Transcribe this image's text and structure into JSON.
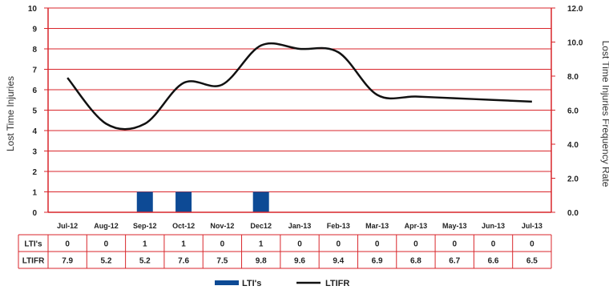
{
  "chart_data": {
    "type": "bar+line",
    "categories": [
      "Jul-12",
      "Aug-12",
      "Sep-12",
      "Oct-12",
      "Nov-12",
      "Dec12",
      "Jan-13",
      "Feb-13",
      "Mar-13",
      "Apr-13",
      "May-13",
      "Jun-13",
      "Jul-13"
    ],
    "series": [
      {
        "name": "LTI's",
        "type": "bar",
        "axis": "left",
        "values": [
          0,
          0,
          1,
          1,
          0,
          1,
          0,
          0,
          0,
          0,
          0,
          0,
          0
        ]
      },
      {
        "name": "LTIFR",
        "type": "line",
        "axis": "right",
        "values": [
          7.9,
          5.2,
          5.2,
          7.6,
          7.5,
          9.8,
          9.6,
          9.4,
          6.9,
          6.8,
          6.7,
          6.6,
          6.5
        ]
      }
    ],
    "ylabel": "Lost Time Injuries",
    "y2label": "Lost Time Injuries Frequency Rate",
    "ylim": [
      0,
      10
    ],
    "y2lim": [
      0,
      12
    ],
    "yticks": [
      "0",
      "1",
      "2",
      "3",
      "4",
      "5",
      "6",
      "7",
      "8",
      "9",
      "10"
    ],
    "y2ticks": [
      "0.0",
      "2.0",
      "4.0",
      "6.0",
      "8.0",
      "10.0",
      "12.0"
    ],
    "grid": true,
    "table": {
      "rows": [
        {
          "label": "LTI's",
          "values": [
            "0",
            "0",
            "1",
            "1",
            "0",
            "1",
            "0",
            "0",
            "0",
            "0",
            "0",
            "0",
            "0"
          ]
        },
        {
          "label": "LTIFR",
          "values": [
            "7.9",
            "5.2",
            "5.2",
            "7.6",
            "7.5",
            "9.8",
            "9.6",
            "9.4",
            "6.9",
            "6.8",
            "6.7",
            "6.6",
            "6.5"
          ]
        }
      ]
    },
    "legend": [
      "LTI's",
      "LTIFR"
    ],
    "colors": {
      "bar": "#0d4a95",
      "line": "#111111",
      "grid": "#d9262b"
    }
  }
}
